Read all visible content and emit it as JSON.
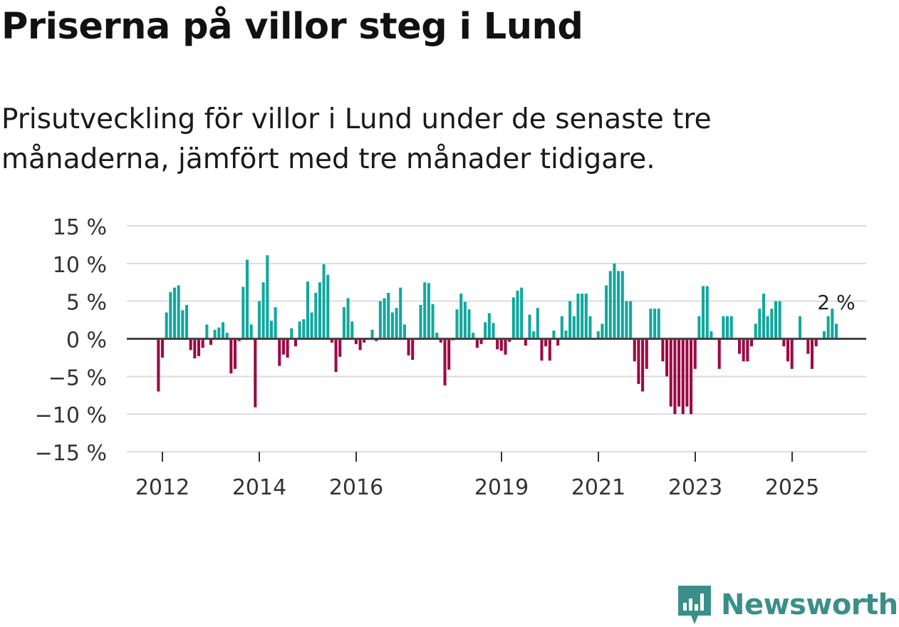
{
  "title": "Priserna på villor steg i Lund",
  "subtitle": "Prisutveckling för villor i Lund under de senaste tre månaderna, jämfört med tre månader tidigare.",
  "brand": {
    "name": "Newsworthy",
    "icon": "newsworthy-logo-icon",
    "color": "#3a8f8a"
  },
  "chart_data": {
    "type": "bar",
    "unit": "%",
    "ylim": [
      -15,
      15
    ],
    "yticks": [
      15,
      10,
      5,
      0,
      -5,
      -10,
      -15
    ],
    "ytick_labels": [
      "15 %",
      "10 %",
      "5 %",
      "0 %",
      "−5 %",
      "−10 %",
      "−15 %"
    ],
    "xtick_labels": [
      "2012",
      "2014",
      "2016",
      "2019",
      "2021",
      "2023",
      "2025"
    ],
    "xtick_positions": [
      2012.0,
      2014.0,
      2016.0,
      2019.0,
      2021.0,
      2023.0,
      2025.0
    ],
    "x_start": 2011.917,
    "x_step": 0.0833,
    "positive_color": "#12a79d",
    "negative_color": "#9b0a45",
    "annotation": {
      "text": "2 %",
      "value": 2
    },
    "values": [
      -7,
      -2.5,
      3.5,
      6.2,
      6.8,
      7.1,
      3.8,
      4.5,
      -1.5,
      -2.6,
      -2.3,
      -1.2,
      1.9,
      -0.8,
      1.2,
      1.5,
      2.2,
      0.8,
      -4.6,
      -4,
      -0.3,
      6.9,
      10.5,
      1.9,
      -9.1,
      5,
      7.5,
      11.1,
      2.4,
      4.2,
      -3.6,
      -2.1,
      -2.5,
      1.4,
      -1,
      2.3,
      2.6,
      7.6,
      3.5,
      6.1,
      7.5,
      9.9,
      8.5,
      -0.5,
      -4.4,
      -2.4,
      4.2,
      5.4,
      2.3,
      -0.7,
      -1.5,
      -0.5,
      0,
      1.2,
      -0.3,
      5,
      5.4,
      6.1,
      3.5,
      4.1,
      6.8,
      1.9,
      -2.2,
      -2.8,
      0,
      4.5,
      7.5,
      7.4,
      4.6,
      0.8,
      -0.5,
      -6.2,
      -4.1,
      -0.2,
      3.9,
      6,
      4.9,
      3.9,
      0.8,
      -1.2,
      -0.7,
      2.2,
      3.4,
      2.1,
      -1.4,
      -1.6,
      -2.1,
      -0.4,
      5.5,
      6.4,
      6.8,
      -0.9,
      3.2,
      1,
      4.1,
      -2.9,
      -1,
      -2.9,
      1.1,
      -0.9,
      3,
      1.1,
      5,
      3,
      6,
      6,
      6,
      3,
      0,
      1,
      2,
      7.1,
      9,
      10,
      9,
      9,
      5,
      5,
      -3,
      -6,
      -7,
      -4,
      4,
      4,
      4,
      -3,
      -5,
      -9,
      -10,
      -9,
      -10,
      -9,
      -10,
      -4,
      3,
      7,
      7,
      1,
      0,
      -4,
      3,
      3,
      3,
      0,
      -2,
      -3,
      -3,
      -1,
      2,
      4,
      6,
      3,
      4,
      5,
      5,
      -1,
      -3,
      -4,
      0,
      3,
      0,
      -2,
      -4,
      -1,
      0,
      1,
      3,
      4,
      2
    ]
  }
}
